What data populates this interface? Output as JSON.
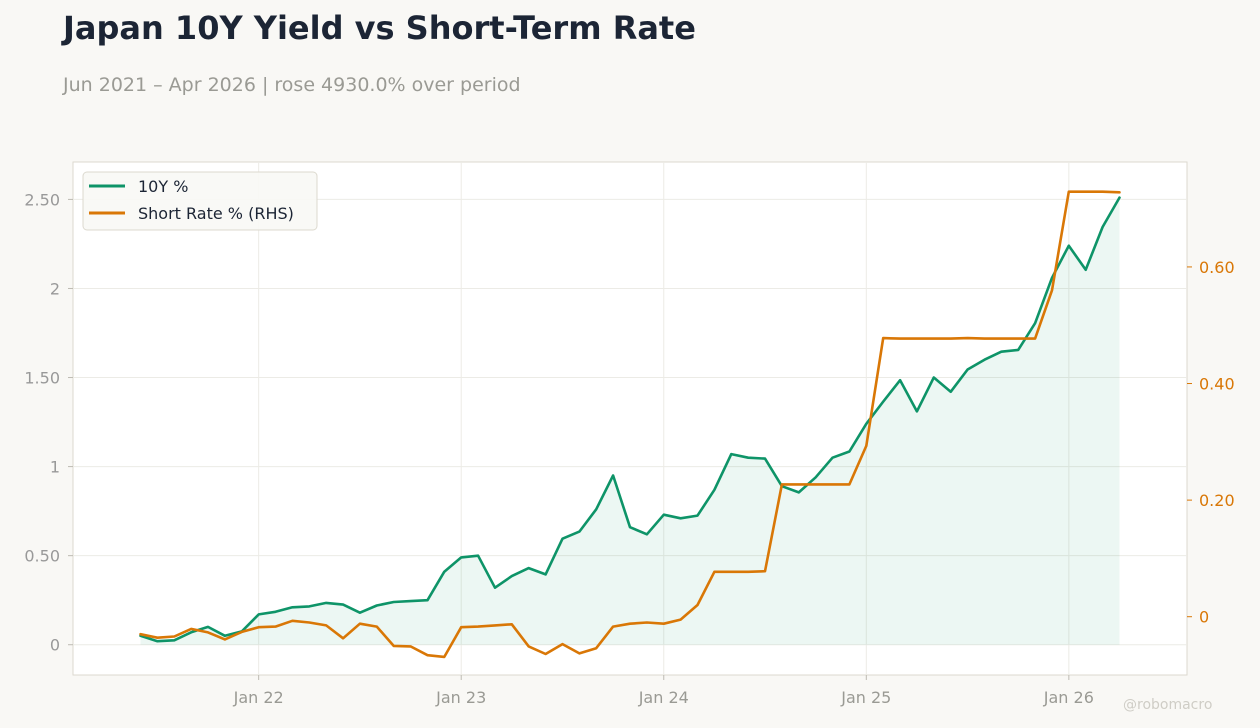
{
  "chart_data": {
    "type": "line",
    "title": "Japan 10Y Yield vs Short-Term Rate",
    "subtitle": "Jun 2021 – Apr 2026 | rose 4930.0% over period",
    "credit": "@robomacro",
    "grid": true,
    "legend_position": "top-left",
    "x_tick_labels": [
      "Jan 22",
      "Jan 23",
      "Jan 24",
      "Jan 25",
      "Jan 26"
    ],
    "x_ticks": [
      "2022-01",
      "2023-01",
      "2024-01",
      "2025-01",
      "2026-01"
    ],
    "x_range": [
      "2021-02",
      "2026-08"
    ],
    "left_axis": {
      "range": [
        -0.17,
        2.71
      ],
      "ticks": [
        0,
        0.5,
        1,
        1.5,
        2,
        2.5
      ],
      "tick_labels": [
        "0",
        "0.50",
        "1",
        "1.50",
        "2",
        "2.50"
      ],
      "color": "#999999"
    },
    "right_axis": {
      "range": [
        -0.1,
        0.78
      ],
      "ticks": [
        0,
        0.2,
        0.4,
        0.6
      ],
      "tick_labels": [
        "0",
        "0.20",
        "0.40",
        "0.60"
      ],
      "color": "#d97706"
    },
    "x": [
      "2021-06",
      "2021-07",
      "2021-08",
      "2021-09",
      "2021-10",
      "2021-11",
      "2021-12",
      "2022-01",
      "2022-02",
      "2022-03",
      "2022-04",
      "2022-05",
      "2022-06",
      "2022-07",
      "2022-08",
      "2022-09",
      "2022-10",
      "2022-11",
      "2022-12",
      "2023-01",
      "2023-02",
      "2023-03",
      "2023-04",
      "2023-05",
      "2023-06",
      "2023-07",
      "2023-08",
      "2023-09",
      "2023-10",
      "2023-11",
      "2023-12",
      "2024-01",
      "2024-02",
      "2024-03",
      "2024-04",
      "2024-05",
      "2024-06",
      "2024-07",
      "2024-08",
      "2024-09",
      "2024-10",
      "2024-11",
      "2024-12",
      "2025-01",
      "2025-02",
      "2025-03",
      "2025-04",
      "2025-05",
      "2025-06",
      "2025-07",
      "2025-08",
      "2025-09",
      "2025-10",
      "2025-11",
      "2025-12",
      "2026-01",
      "2026-02",
      "2026-03",
      "2026-04"
    ],
    "series": [
      {
        "name": "10Y %",
        "axis": "left",
        "color": "#0e9468",
        "fill": true,
        "values": [
          0.05,
          0.02,
          0.025,
          0.07,
          0.1,
          0.05,
          0.075,
          0.17,
          0.185,
          0.21,
          0.215,
          0.235,
          0.225,
          0.18,
          0.22,
          0.24,
          0.245,
          0.25,
          0.41,
          0.49,
          0.5,
          0.32,
          0.385,
          0.43,
          0.395,
          0.595,
          0.635,
          0.76,
          0.95,
          0.66,
          0.62,
          0.73,
          0.71,
          0.725,
          0.87,
          1.07,
          1.05,
          1.045,
          0.89,
          0.855,
          0.94,
          1.05,
          1.085,
          1.24,
          1.365,
          1.485,
          1.31,
          1.5,
          1.42,
          1.545,
          1.6,
          1.645,
          1.655,
          1.805,
          2.06,
          2.24,
          2.105,
          2.345,
          2.51
        ]
      },
      {
        "name": "Short Rate % (RHS)",
        "axis": "right",
        "color": "#d97706",
        "fill": false,
        "values": [
          -0.03,
          -0.036,
          -0.034,
          -0.021,
          -0.027,
          -0.039,
          -0.026,
          -0.018,
          -0.017,
          -0.007,
          -0.01,
          -0.015,
          -0.037,
          -0.012,
          -0.017,
          -0.05,
          -0.051,
          -0.066,
          -0.069,
          -0.018,
          -0.017,
          -0.015,
          -0.013,
          -0.051,
          -0.064,
          -0.047,
          -0.063,
          -0.054,
          -0.017,
          -0.012,
          -0.01,
          -0.012,
          -0.005,
          0.02,
          0.077,
          0.077,
          0.077,
          0.078,
          0.227,
          0.227,
          0.227,
          0.227,
          0.227,
          0.293,
          0.478,
          0.477,
          0.477,
          0.477,
          0.477,
          0.478,
          0.477,
          0.477,
          0.477,
          0.477,
          0.56,
          0.729,
          0.729,
          0.729,
          0.728
        ]
      }
    ]
  }
}
